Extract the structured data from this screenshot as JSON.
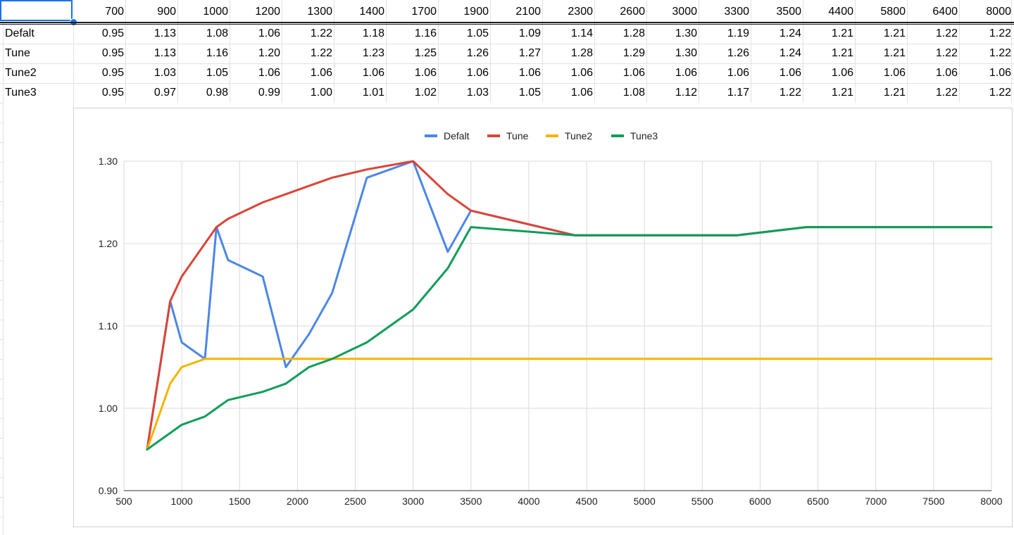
{
  "sheet": {
    "columns": [
      "700",
      "900",
      "1000",
      "1200",
      "1300",
      "1400",
      "1700",
      "1900",
      "2100",
      "2300",
      "2600",
      "3000",
      "3300",
      "3500",
      "4400",
      "5800",
      "6400",
      "8000"
    ],
    "rows": [
      {
        "label": "Defalt",
        "values": [
          "0.95",
          "1.13",
          "1.08",
          "1.06",
          "1.22",
          "1.18",
          "1.16",
          "1.05",
          "1.09",
          "1.14",
          "1.28",
          "1.30",
          "1.19",
          "1.24",
          "1.21",
          "1.21",
          "1.22",
          "1.22"
        ]
      },
      {
        "label": "Tune",
        "values": [
          "0.95",
          "1.13",
          "1.16",
          "1.20",
          "1.22",
          "1.23",
          "1.25",
          "1.26",
          "1.27",
          "1.28",
          "1.29",
          "1.30",
          "1.26",
          "1.24",
          "1.21",
          "1.21",
          "1.22",
          "1.22"
        ]
      },
      {
        "label": "Tune2",
        "values": [
          "0.95",
          "1.03",
          "1.05",
          "1.06",
          "1.06",
          "1.06",
          "1.06",
          "1.06",
          "1.06",
          "1.06",
          "1.06",
          "1.06",
          "1.06",
          "1.06",
          "1.06",
          "1.06",
          "1.06",
          "1.06"
        ]
      },
      {
        "label": "Tune3",
        "values": [
          "0.95",
          "0.97",
          "0.98",
          "0.99",
          "1.00",
          "1.01",
          "1.02",
          "1.03",
          "1.05",
          "1.06",
          "1.08",
          "1.12",
          "1.17",
          "1.22",
          "1.21",
          "1.21",
          "1.22",
          "1.22"
        ]
      }
    ]
  },
  "chart_data": {
    "type": "line",
    "x": [
      700,
      900,
      1000,
      1200,
      1300,
      1400,
      1700,
      1900,
      2100,
      2300,
      2600,
      3000,
      3300,
      3500,
      4400,
      5800,
      6400,
      8000
    ],
    "series": [
      {
        "name": "Defalt",
        "color": "#4a86e8",
        "values": [
          0.95,
          1.13,
          1.08,
          1.06,
          1.22,
          1.18,
          1.16,
          1.05,
          1.09,
          1.14,
          1.28,
          1.3,
          1.19,
          1.24,
          1.21,
          1.21,
          1.22,
          1.22
        ]
      },
      {
        "name": "Tune",
        "color": "#db4437",
        "values": [
          0.95,
          1.13,
          1.16,
          1.2,
          1.22,
          1.23,
          1.25,
          1.26,
          1.27,
          1.28,
          1.29,
          1.3,
          1.26,
          1.24,
          1.21,
          1.21,
          1.22,
          1.22
        ]
      },
      {
        "name": "Tune2",
        "color": "#f4b400",
        "values": [
          0.95,
          1.03,
          1.05,
          1.06,
          1.06,
          1.06,
          1.06,
          1.06,
          1.06,
          1.06,
          1.06,
          1.06,
          1.06,
          1.06,
          1.06,
          1.06,
          1.06,
          1.06
        ]
      },
      {
        "name": "Tune3",
        "color": "#0f9d58",
        "values": [
          0.95,
          0.97,
          0.98,
          0.99,
          1.0,
          1.01,
          1.02,
          1.03,
          1.05,
          1.06,
          1.08,
          1.12,
          1.17,
          1.22,
          1.21,
          1.21,
          1.22,
          1.22
        ]
      }
    ],
    "xlim": [
      500,
      8000
    ],
    "ylim": [
      0.9,
      1.3
    ],
    "xticks": [
      "500",
      "1000",
      "1500",
      "2000",
      "2500",
      "3000",
      "3500",
      "4000",
      "4500",
      "5000",
      "5500",
      "6000",
      "6500",
      "7000",
      "7500",
      "8000"
    ],
    "yticks": [
      "0.90",
      "1.00",
      "1.10",
      "1.20",
      "1.30"
    ],
    "legend_position": "top",
    "grid": true
  }
}
